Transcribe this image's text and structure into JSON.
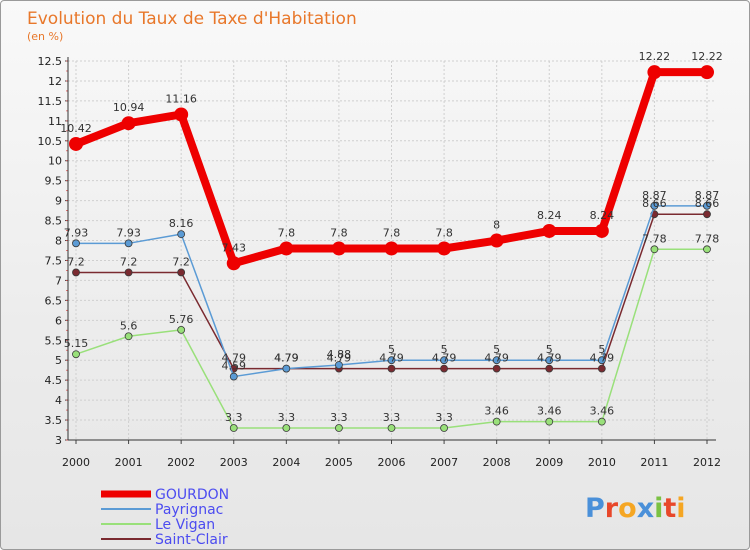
{
  "chart_data": {
    "type": "line",
    "title": "Evolution du Taux de Taxe d'Habitation",
    "subtitle": "(en %)",
    "categories": [
      "2000",
      "2001",
      "2002",
      "2003",
      "2004",
      "2005",
      "2006",
      "2007",
      "2008",
      "2009",
      "2010",
      "2011",
      "2012"
    ],
    "ylim": [
      3,
      12.5
    ],
    "yticks": [
      "3",
      "3.5",
      "4",
      "4.5",
      "5",
      "5.5",
      "6",
      "6.5",
      "7",
      "7.5",
      "8",
      "8.5",
      "9",
      "9.5",
      "10",
      "10.5",
      "11",
      "11.5",
      "12",
      "12.5"
    ],
    "grid": true,
    "series": [
      {
        "name": "GOURDON",
        "color": "#ee0000",
        "values": [
          10.42,
          10.94,
          11.16,
          7.43,
          7.8,
          7.8,
          7.8,
          7.8,
          8,
          8.24,
          8.24,
          12.22,
          12.22
        ],
        "labels": [
          "10.42",
          "10.94",
          "11.16",
          "7.43",
          "7.8",
          "7.8",
          "7.8",
          "7.8",
          "8",
          "8.24",
          "8.24",
          "12.22",
          "12.22"
        ]
      },
      {
        "name": "Payrignac",
        "color": "#5b9bd5",
        "values": [
          7.93,
          7.93,
          8.16,
          4.59,
          4.79,
          4.88,
          5,
          5,
          5,
          5,
          5,
          8.87,
          8.87
        ],
        "labels": [
          "7.93",
          "7.93",
          "8.16",
          "4.59",
          "4.79",
          "4.88",
          "5",
          "5",
          "5",
          "5",
          "5",
          "8.87",
          "8.87"
        ]
      },
      {
        "name": "Le Vigan",
        "color": "#99e07a",
        "values": [
          5.15,
          5.6,
          5.76,
          3.3,
          3.3,
          3.3,
          3.3,
          3.3,
          3.46,
          3.46,
          3.46,
          7.78,
          7.78
        ],
        "labels": [
          "5.15",
          "5.6",
          "5.76",
          "3.3",
          "3.3",
          "3.3",
          "3.3",
          "3.3",
          "3.46",
          "3.46",
          "3.46",
          "7.78",
          "7.78"
        ]
      },
      {
        "name": "Saint-Clair",
        "color": "#7a2a30",
        "values": [
          7.2,
          7.2,
          7.2,
          4.79,
          4.79,
          4.79,
          4.79,
          4.79,
          4.79,
          4.79,
          4.79,
          8.66,
          8.66
        ],
        "labels": [
          "7.2",
          "7.2",
          "7.2",
          "4.79",
          "4.79",
          "4.79",
          "4.79",
          "4.79",
          "4.79",
          "4.79",
          "4.79",
          "8.66",
          "8.66"
        ]
      }
    ]
  },
  "logo": {
    "letters": [
      "P",
      "r",
      "o",
      "x",
      "i",
      "t",
      "i"
    ],
    "colors": [
      "#4a90d9",
      "#e8472a",
      "#f5a623",
      "#4a90d9",
      "#7ac143",
      "#e8472a",
      "#f5a623"
    ]
  }
}
